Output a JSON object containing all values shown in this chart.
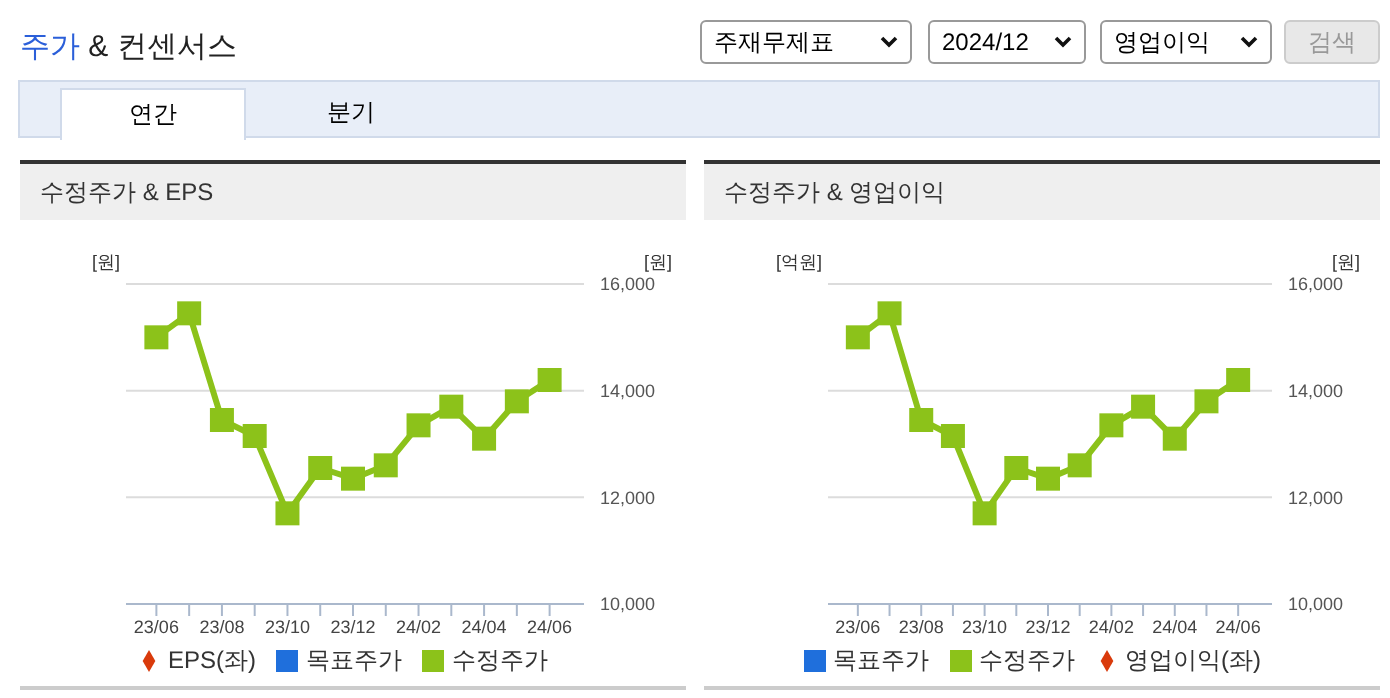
{
  "chart_data": [
    {
      "type": "other",
      "title": "주가 & 컨센서스",
      "annotations": [
        "주재무제표",
        "2024/12",
        "영업이익",
        "검색",
        "연간",
        "분기"
      ]
    },
    {
      "type": "line",
      "title": "수정주가 & EPS",
      "ylabel": "[원]",
      "y2label": "[원]",
      "categories": [
        "23/06",
        null,
        "23/08",
        null,
        "23/10",
        null,
        "23/12",
        null,
        "24/02",
        null,
        "24/04",
        null,
        "24/06"
      ],
      "series": [
        {
          "name": "목표주가",
          "type": "bar",
          "color": "#1f6fdc",
          "values": [
            null,
            null,
            null,
            null,
            null,
            null,
            null,
            null,
            null,
            null,
            null,
            null,
            null
          ]
        },
        {
          "name": "EPS(좌)",
          "type": "line",
          "color": "#d93a0b",
          "marker": "diamond",
          "values": [
            null,
            null,
            null,
            null,
            null,
            null,
            null,
            null,
            null,
            null,
            null,
            null,
            null
          ]
        },
        {
          "name": "수정주가",
          "type": "line",
          "axis": "y2",
          "color": "#8cc21a",
          "marker": "square",
          "values": [
            15000,
            15450,
            13450,
            13150,
            11700,
            12550,
            12350,
            12600,
            13350,
            13700,
            13100,
            13800,
            14200
          ]
        }
      ],
      "y2lim": [
        10000,
        16000
      ],
      "y2ticks": [
        {
          "value": 10000,
          "label": "10,000"
        },
        {
          "value": 12000,
          "label": "12,000"
        },
        {
          "value": 14000,
          "label": "14,000"
        },
        {
          "value": 16000,
          "label": "16,000"
        }
      ],
      "grid": "y",
      "legend": "bottom"
    },
    {
      "type": "line",
      "title": "수정주가 & 영업이익",
      "ylabel": "[억원]",
      "y2label": "[원]",
      "categories": [
        "23/06",
        null,
        "23/08",
        null,
        "23/10",
        null,
        "23/12",
        null,
        "24/02",
        null,
        "24/04",
        null,
        "24/06"
      ],
      "series": [
        {
          "name": "목표주가",
          "type": "bar",
          "color": "#1f6fdc",
          "values": [
            null,
            null,
            null,
            null,
            null,
            null,
            null,
            null,
            null,
            null,
            null,
            null,
            null
          ]
        },
        {
          "name": "영업이익(좌)",
          "type": "line",
          "color": "#d93a0b",
          "marker": "diamond",
          "values": [
            null,
            null,
            null,
            null,
            null,
            null,
            null,
            null,
            null,
            null,
            null,
            null,
            null
          ]
        },
        {
          "name": "수정주가",
          "type": "line",
          "axis": "y2",
          "color": "#8cc21a",
          "marker": "square",
          "values": [
            15000,
            15450,
            13450,
            13150,
            11700,
            12550,
            12350,
            12600,
            13350,
            13700,
            13100,
            13800,
            14200
          ]
        }
      ],
      "y2lim": [
        10000,
        16000
      ],
      "y2ticks": [
        {
          "value": 10000,
          "label": "10,000"
        },
        {
          "value": 12000,
          "label": "12,000"
        },
        {
          "value": 14000,
          "label": "14,000"
        },
        {
          "value": 16000,
          "label": "16,000"
        }
      ],
      "grid": "y",
      "legend": "bottom"
    }
  ]
}
